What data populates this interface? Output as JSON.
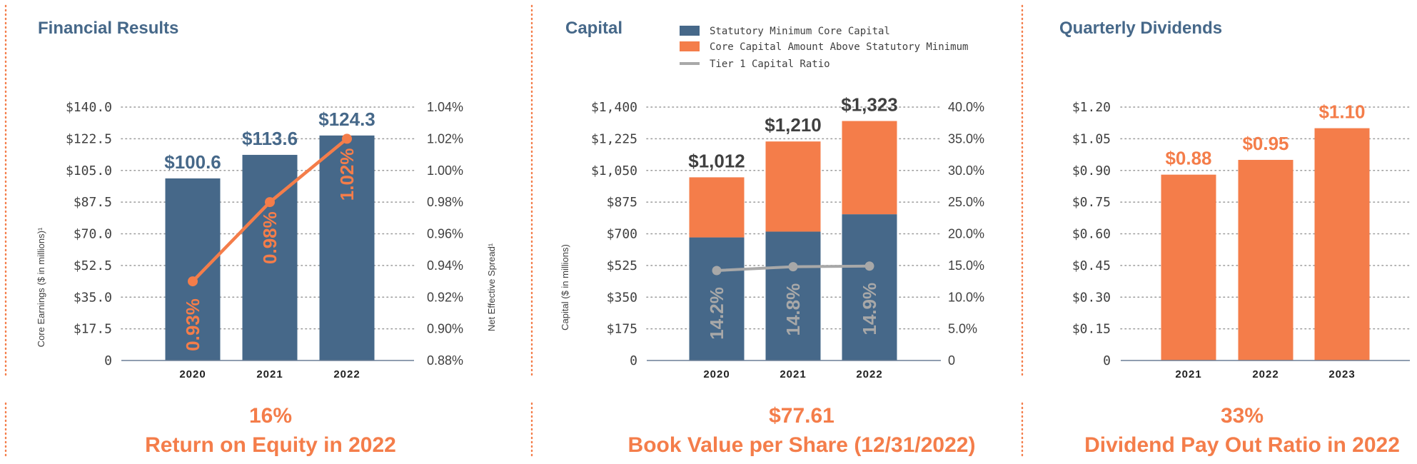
{
  "colors": {
    "blue": "#466889",
    "orange": "#F47D4A",
    "gray": "#A8A8A8",
    "dark": "#404040",
    "grid": "#9a9a9a"
  },
  "panels": [
    {
      "title": "Financial Results",
      "stat_value": "16%",
      "stat_label": "Return on Equity in 2022"
    },
    {
      "title": "Capital",
      "stat_value": "$77.61",
      "stat_label": "Book Value per Share (12/31/2022)"
    },
    {
      "title": "Quarterly Dividends",
      "stat_value": "33%",
      "stat_label": "Dividend Pay Out Ratio in 2022"
    }
  ],
  "chart_data": [
    {
      "type": "bar",
      "title": "Financial Results",
      "categories": [
        "2020",
        "2021",
        "2022"
      ],
      "ylabel": "Core Earnings ($ in millions)¹",
      "y2label": "Net Effective Spread¹",
      "ylim": [
        0,
        140
      ],
      "y2lim": [
        0.88,
        1.04
      ],
      "yticks": [
        "0",
        "$17.5",
        "$35.0",
        "$52.5",
        "$70.0",
        "$87.5",
        "$105.0",
        "$122.5",
        "$140.0"
      ],
      "y2ticks": [
        "0.88%",
        "0.90%",
        "0.92%",
        "0.94%",
        "0.96%",
        "0.98%",
        "1.00%",
        "1.02%",
        "1.04%"
      ],
      "grid": true,
      "series": [
        {
          "values": [
            100.6,
            113.6,
            124.3
          ],
          "labels": [
            "$100.6",
            "$113.6",
            "$124.3"
          ],
          "color": "#466889"
        },
        {
          "type": "line",
          "axis": "right",
          "values": [
            0.93,
            0.98,
            1.02
          ],
          "labels": [
            "0.93%",
            "0.98%",
            "1.02%"
          ],
          "color": "#F47D4A"
        }
      ]
    },
    {
      "type": "bar",
      "stacked": true,
      "title": "Capital",
      "categories": [
        "2020",
        "2021",
        "2022"
      ],
      "ylabel": "Capital ($ in millions)",
      "ylim": [
        0,
        1400
      ],
      "y2lim": [
        0,
        40
      ],
      "yticks": [
        "0",
        "$175",
        "$350",
        "$525",
        "$700",
        "$875",
        "$1,050",
        "$1,225",
        "$1,400"
      ],
      "y2ticks": [
        "0",
        "5.0%",
        "10.0%",
        "15.0%",
        "20.0%",
        "25.0%",
        "30.0%",
        "35.0%",
        "40.0%"
      ],
      "grid": true,
      "legend_position": "top",
      "totals": [
        "$1,012",
        "$1,210",
        "$1,323"
      ],
      "series": [
        {
          "name": "Statutory Minimum Core Capital",
          "values": [
            680,
            712,
            808
          ],
          "color": "#466889"
        },
        {
          "name": "Core Capital Amount Above Statutory Minimum",
          "values": [
            332,
            498,
            515
          ],
          "color": "#F47D4A"
        },
        {
          "name": "Tier 1 Capital Ratio",
          "type": "line",
          "axis": "right",
          "values": [
            14.2,
            14.8,
            14.9
          ],
          "labels": [
            "14.2%",
            "14.8%",
            "14.9%"
          ],
          "color": "#A8A8A8"
        }
      ]
    },
    {
      "type": "bar",
      "title": "Quarterly Dividends",
      "categories": [
        "2021",
        "2022",
        "2023"
      ],
      "ylim": [
        0,
        1.2
      ],
      "yticks": [
        "0",
        "$0.15",
        "$0.30",
        "$0.45",
        "$0.60",
        "$0.75",
        "$0.90",
        "$1.05",
        "$1.20"
      ],
      "grid": true,
      "series": [
        {
          "values": [
            0.88,
            0.95,
            1.1
          ],
          "labels": [
            "$0.88",
            "$0.95",
            "$1.10"
          ],
          "color": "#F47D4A"
        }
      ]
    }
  ]
}
